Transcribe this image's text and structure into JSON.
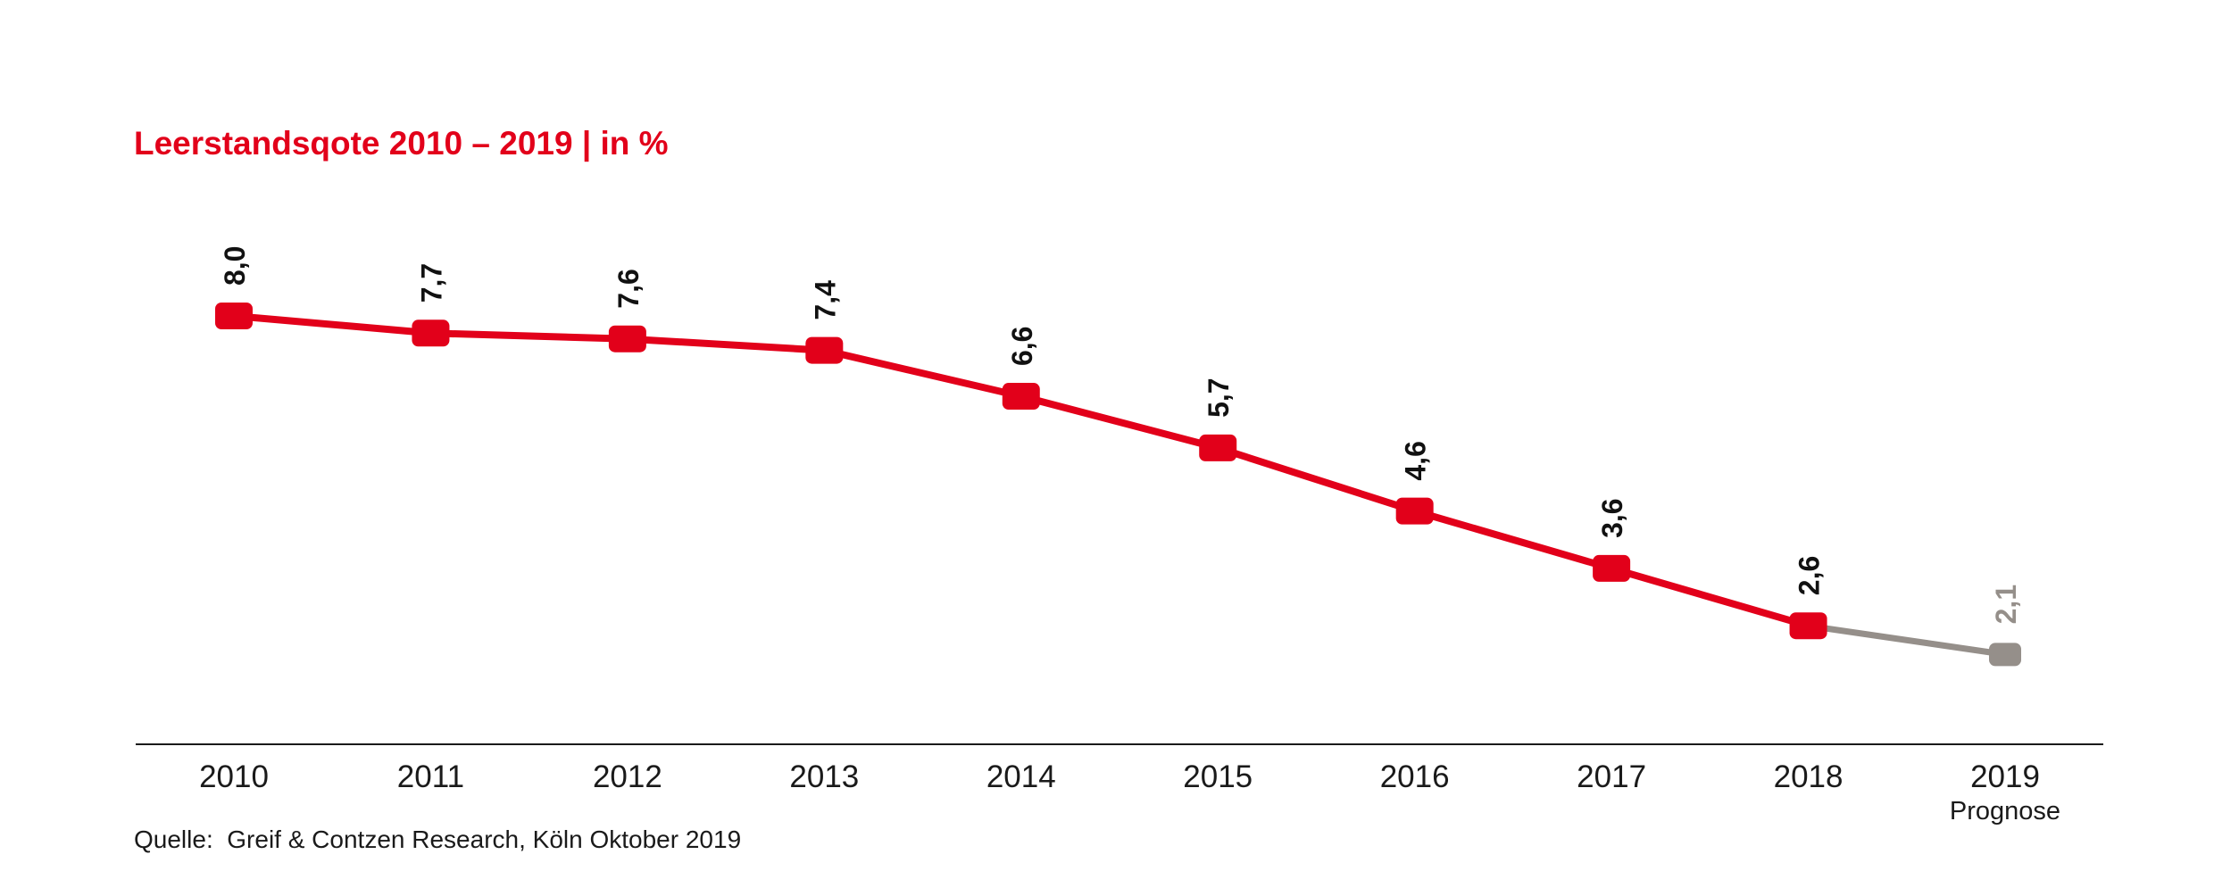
{
  "chart_data": {
    "type": "line",
    "title": "Leerstandsqote 2010 – 2019 | in %",
    "categories": [
      "2010",
      "2011",
      "2012",
      "2013",
      "2014",
      "2015",
      "2016",
      "2017",
      "2018",
      "2019"
    ],
    "category_sublabels": [
      "",
      "",
      "",
      "",
      "",
      "",
      "",
      "",
      "",
      "Prognose"
    ],
    "series": [
      {
        "values": [
          8.0,
          7.7,
          7.6,
          7.4,
          6.6,
          5.7,
          4.6,
          3.6,
          2.6,
          2.1
        ]
      }
    ],
    "data_labels": [
      "8,0",
      "7,7",
      "7,6",
      "7,4",
      "6,6",
      "5,7",
      "4,6",
      "3,6",
      "2,6",
      "2,1"
    ],
    "forecast_from_index": 8,
    "xlabel": "",
    "ylabel": "",
    "ylim": [
      0,
      8.0
    ],
    "grid": false,
    "legend": "none",
    "colors": {
      "actual": "#e2001a",
      "forecast": "#958f8a",
      "axis": "#1a1a1a",
      "label": "#111111"
    }
  },
  "source": "Quelle:  Greif & Contzen Research, Köln Oktober 2019"
}
